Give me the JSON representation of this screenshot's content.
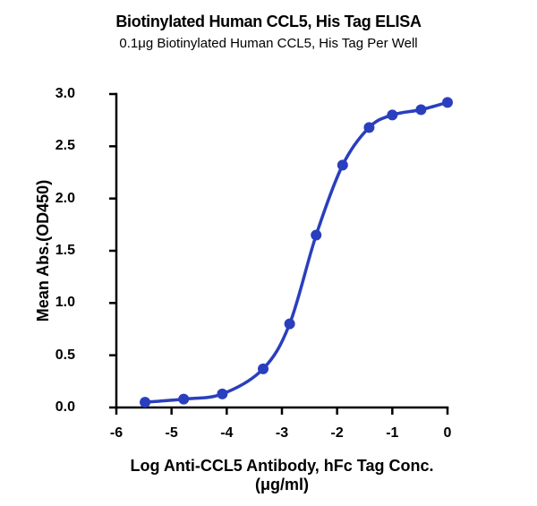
{
  "chart": {
    "type": "line",
    "title": "Biotinylated Human CCL5, His Tag ELISA",
    "title_fontsize": 18,
    "subtitle": "0.1μg Biotinylated Human CCL5, His Tag Per Well",
    "subtitle_fontsize": 15,
    "xlabel": "Log Anti-CCL5 Antibody, hFc Tag Conc.(μg/ml)",
    "ylabel": "Mean Abs.(OD450)",
    "label_fontsize": 18,
    "tick_fontsize": 16,
    "xlim": [
      -6,
      0
    ],
    "ylim": [
      0,
      3.0
    ],
    "xtick_step": 1,
    "ytick_step": 0.5,
    "y_decimals": 1,
    "background_color": "#ffffff",
    "axis_color": "#000000",
    "axis_width": 2.5,
    "tick_length": 8,
    "curve_color": "#2a3fbd",
    "curve_width": 3.5,
    "marker_style": "circle",
    "marker_radius": 5.5,
    "marker_fill": "#2a3fbd",
    "marker_stroke": "#2a3fbd",
    "series": {
      "x": [
        -5.48,
        -4.78,
        -4.08,
        -3.34,
        -2.86,
        -2.38,
        -1.9,
        -1.42,
        -1.0,
        -0.48,
        0.0
      ],
      "y": [
        0.05,
        0.08,
        0.13,
        0.37,
        0.8,
        1.65,
        2.32,
        2.68,
        2.8,
        2.85,
        2.92
      ]
    },
    "curve_samples": 120
  }
}
